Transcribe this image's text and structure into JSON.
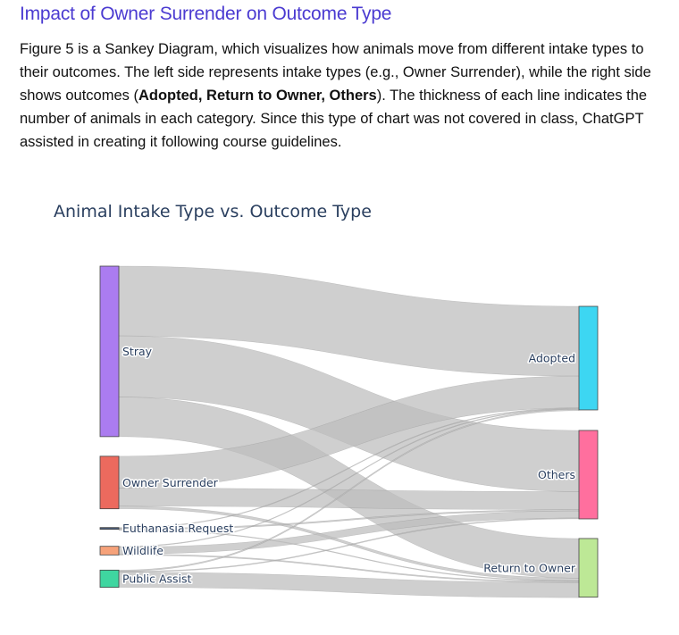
{
  "page": {
    "title": "Impact of Owner Surrender on Outcome Type",
    "intro_1": "Figure 5 is a Sankey Diagram, which visualizes how animals move from different intake types to their outcomes. The left side represents intake types (e.g., Owner Surrender), while the right side shows outcomes (",
    "intro_bold": "Adopted, Return to Owner, Others",
    "intro_2": "). The thickness of each line indicates the number of animals in each category. Since this type of chart was not covered in class, ChatGPT assisted in creating it following course guidelines."
  },
  "chart_data": {
    "type": "sankey",
    "title": "Animal Intake Type vs. Outcome Type",
    "link_color": "#bdbdbd",
    "sources": [
      {
        "name": "Stray",
        "color": "#ab7cf0"
      },
      {
        "name": "Owner Surrender",
        "color": "#ec6a5e"
      },
      {
        "name": "Euthanasia Request",
        "color": "#4a5d7a"
      },
      {
        "name": "Wildlife",
        "color": "#f6a27a"
      },
      {
        "name": "Public Assist",
        "color": "#3fd6a0"
      }
    ],
    "targets": [
      {
        "name": "Adopted",
        "color": "#3dd6f2"
      },
      {
        "name": "Others",
        "color": "#ff6f9e"
      },
      {
        "name": "Return to Owner",
        "color": "#bde896"
      }
    ],
    "links": [
      {
        "source": "Stray",
        "target": "Adopted",
        "value": 81
      },
      {
        "source": "Stray",
        "target": "Others",
        "value": 71
      },
      {
        "source": "Stray",
        "target": "Return to Owner",
        "value": 46
      },
      {
        "source": "Owner Surrender",
        "target": "Adopted",
        "value": 37
      },
      {
        "source": "Owner Surrender",
        "target": "Others",
        "value": 21
      },
      {
        "source": "Owner Surrender",
        "target": "Return to Owner",
        "value": 3
      },
      {
        "source": "Euthanasia Request",
        "target": "Adopted",
        "value": 0.3
      },
      {
        "source": "Euthanasia Request",
        "target": "Others",
        "value": 1.5
      },
      {
        "source": "Euthanasia Request",
        "target": "Return to Owner",
        "value": 0.3
      },
      {
        "source": "Wildlife",
        "target": "Adopted",
        "value": 0.5
      },
      {
        "source": "Wildlife",
        "target": "Others",
        "value": 8.2
      },
      {
        "source": "Wildlife",
        "target": "Return to Owner",
        "value": 1.3
      },
      {
        "source": "Public Assist",
        "target": "Adopted",
        "value": 1.5
      },
      {
        "source": "Public Assist",
        "target": "Others",
        "value": 1
      },
      {
        "source": "Public Assist",
        "target": "Return to Owner",
        "value": 17.5
      }
    ]
  }
}
